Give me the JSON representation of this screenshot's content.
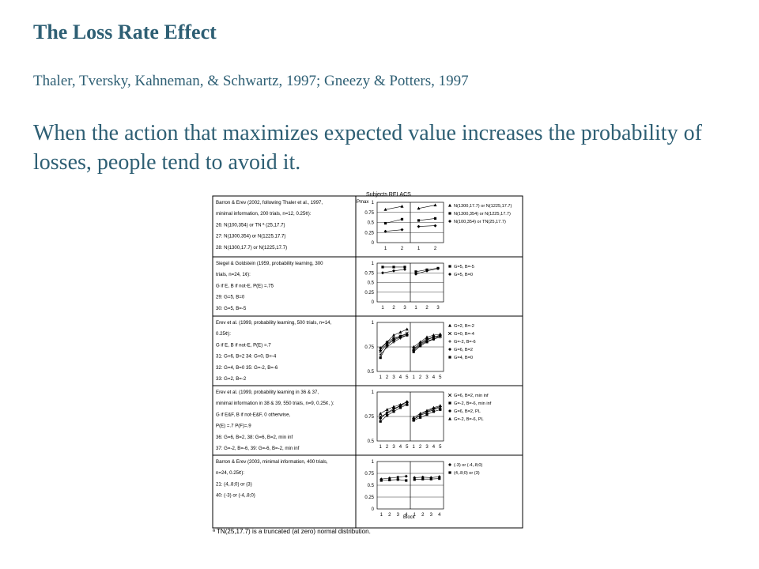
{
  "slide": {
    "title": "The Loss Rate Effect",
    "citation": "Thaler, Tversky, Kahneman, & Schwartz, 1997; Gneezy & Potters, 1997",
    "statement": "When the action that maximizes expected value increases the probability of losses, people tend to avoid it."
  },
  "figure": {
    "header": "Subjects   RELACS",
    "y_label": "Pmax",
    "x_label": "Block",
    "footnote": "ª TN(25,17.7) is a truncated (at zero) normal distribution.",
    "rows": [
      {
        "lines": [
          "Barron & Erev (2002, following Thaler et al., 1997,",
          "minimal information, 200 trials, n=12, 0.25¢):",
          "26: N(100,354) or TN ª (25,17.7)",
          "27: N(1300,354) or N(1225,17.7)",
          "28: N(1300,17.7) or N(1225,17.7)"
        ],
        "yticks": [
          "1",
          "0.75",
          "0.5",
          "0.25",
          "0"
        ],
        "xticks": [
          "1",
          "2"
        ],
        "legend": [
          "N(1300,17.7) or N(1225,17.7)",
          "N(1300,354) or N(1225,17.7)",
          "N(100,354) or TN(25,17.7)"
        ]
      },
      {
        "lines": [
          "Siegel & Goldstein (1959, probability learning, 300",
          "trials, n=24, 1¢):",
          "G if E, B if not-E, P(E) =.75",
          "29: G=5, B=0",
          "30: G=5, B=-5"
        ],
        "yticks": [
          "1",
          "0.75",
          "0.5",
          "0.25",
          "0"
        ],
        "xticks": [
          "1",
          "2",
          "3"
        ],
        "legend": [
          "G=5, B=-5",
          "G=5, B=0"
        ]
      },
      {
        "lines": [
          "Erev et al. (1999, probability learning, 500 trials, n=14,",
          "0.25¢):",
          "G if E, B if not-E, P(E) =.7",
          "31: G=6, B=2  34: G=0, B=-4",
          "32: G=4, B=0  35: G=-2, B=-6",
          "33: G=2, B=-2"
        ],
        "yticks": [
          "1",
          "0.75",
          "0.5"
        ],
        "xticks": [
          "1",
          "2",
          "3",
          "4",
          "5"
        ],
        "legend": [
          "G=2, B=-2",
          "G=0, B=-4",
          "G=-2, B=-6",
          "G=6, B=2",
          "G=4, B=0"
        ]
      },
      {
        "lines": [
          "Erev et al. (1999, probability learning in 36 & 37,",
          "minimal information in 38 & 39, 550 trials, n=9, 0.25¢, ):",
          "G if E&F, B if not-E&F, 0 otherwise,",
          "P(E) =.7 P(F)=.9",
          "36: G=6, B=2,  38: G=6, B=2, min inf",
          "37: G=-2, B=-6, 39: G=-6, B=-2, min inf"
        ],
        "yticks": [
          "1",
          "0.75",
          "0.5"
        ],
        "xticks": [
          "1",
          "2",
          "3",
          "4",
          "5"
        ],
        "legend": [
          "G=6, B=2, min inf",
          "G=-2, B=-6, min inf",
          "G=6, B=2, PL",
          "G=-2, B=-6, PL"
        ]
      },
      {
        "lines": [
          "Barron & Erev (2003, minimal information, 400 trials,",
          "n=24, 0.25¢):",
          "21: (4,.8;0) or (3)",
          "40: (-3) or (-4,.8;0)"
        ],
        "yticks": [
          "1",
          "0.75",
          "0.5",
          "0.25",
          "0"
        ],
        "xticks": [
          "1",
          "2",
          "3",
          "4"
        ],
        "legend": [
          "(-3) or (-4,.8;0)",
          "(4,.8;0) or (3)"
        ]
      }
    ]
  },
  "chart_data": [
    {
      "type": "line",
      "ylim": [
        0,
        1
      ],
      "series": [
        {
          "name": "N(1300,17.7) or N(1225,17.7)",
          "values": [
            [
              0.82,
              0.9
            ],
            [
              0.85,
              0.93
            ]
          ]
        },
        {
          "name": "N(1300,354) or N(1225,17.7)",
          "values": [
            [
              0.48,
              0.58
            ],
            [
              0.55,
              0.6
            ]
          ]
        },
        {
          "name": "N(100,354) or TN(25,17.7)",
          "values": [
            [
              0.28,
              0.32
            ],
            [
              0.4,
              0.42
            ]
          ]
        }
      ]
    },
    {
      "type": "line",
      "ylim": [
        0,
        1
      ],
      "series": [
        {
          "name": "G=5, B=-5",
          "values": [
            [
              0.9,
              0.9,
              0.9
            ],
            [
              0.78,
              0.83,
              0.87
            ]
          ]
        },
        {
          "name": "G=5, B=0",
          "values": [
            [
              0.75,
              0.8,
              0.84
            ],
            [
              0.72,
              0.8,
              0.86
            ]
          ]
        }
      ]
    },
    {
      "type": "line",
      "ylim": [
        0.5,
        1
      ],
      "series": [
        {
          "name": "G=2, B=-2",
          "values": [
            [
              0.72,
              0.8,
              0.87,
              0.9,
              0.93
            ],
            [
              0.75,
              0.8,
              0.85,
              0.87,
              0.88
            ]
          ]
        },
        {
          "name": "G=0, B=-4",
          "values": [
            [
              0.7,
              0.78,
              0.83,
              0.86,
              0.89
            ],
            [
              0.73,
              0.78,
              0.82,
              0.85,
              0.86
            ]
          ]
        },
        {
          "name": "G=-2, B=-6",
          "values": [
            [
              0.67,
              0.75,
              0.8,
              0.84,
              0.87
            ],
            [
              0.71,
              0.77,
              0.81,
              0.83,
              0.85
            ]
          ]
        },
        {
          "name": "G=6, B=2",
          "values": [
            [
              0.74,
              0.8,
              0.84,
              0.86,
              0.88
            ],
            [
              0.72,
              0.79,
              0.83,
              0.85,
              0.87
            ]
          ]
        },
        {
          "name": "G=4, B=0",
          "values": [
            [
              0.64,
              0.77,
              0.82,
              0.85,
              0.87
            ],
            [
              0.7,
              0.76,
              0.8,
              0.83,
              0.86
            ]
          ]
        }
      ]
    },
    {
      "type": "line",
      "ylim": [
        0.5,
        1
      ],
      "series": [
        {
          "name": "G=6, B=2, min inf",
          "values": [
            [
              0.75,
              0.78,
              0.82,
              0.86,
              0.88
            ],
            [
              0.72,
              0.76,
              0.79,
              0.82,
              0.84
            ]
          ]
        },
        {
          "name": "G=-2, B=-6, min inf",
          "values": [
            [
              0.7,
              0.76,
              0.8,
              0.84,
              0.87
            ],
            [
              0.71,
              0.74,
              0.77,
              0.8,
              0.82
            ]
          ]
        },
        {
          "name": "G=6, B=2, PL",
          "values": [
            [
              0.73,
              0.79,
              0.83,
              0.86,
              0.9
            ],
            [
              0.72,
              0.77,
              0.8,
              0.83,
              0.85
            ]
          ]
        },
        {
          "name": "G=-2, B=-6, PL",
          "values": [
            [
              0.78,
              0.82,
              0.85,
              0.87,
              0.9
            ],
            [
              0.74,
              0.78,
              0.81,
              0.84,
              0.86
            ]
          ]
        }
      ]
    },
    {
      "type": "line",
      "ylim": [
        0,
        1
      ],
      "series": [
        {
          "name": "(-3) or (-4,.8;0)",
          "values": [
            [
              0.63,
              0.65,
              0.67,
              0.69
            ],
            [
              0.66,
              0.67,
              0.66,
              0.68
            ]
          ]
        },
        {
          "name": "(4,.8;0) or (3)",
          "values": [
            [
              0.6,
              0.61,
              0.62,
              0.6
            ],
            [
              0.62,
              0.63,
              0.63,
              0.64
            ]
          ]
        }
      ]
    }
  ]
}
